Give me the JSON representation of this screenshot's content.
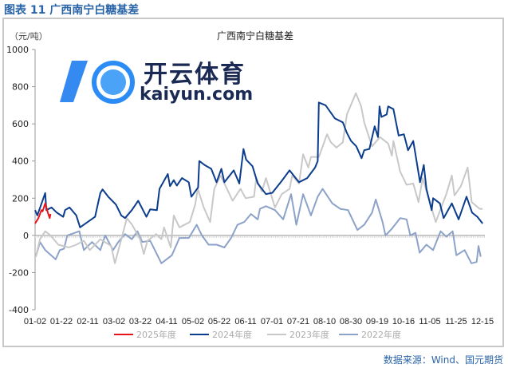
{
  "figure_title": "图表 11  广西南宁白糖基差",
  "source": "数据来源：Wind、国元期货",
  "watermark": {
    "cn": "开云体育",
    "en": "kaiyun.com"
  },
  "chart_data": {
    "type": "line",
    "title": "广西南宁白糖基差",
    "ylabel": "（元/吨）",
    "xlabel": "",
    "ylim": [
      -400,
      1000
    ],
    "yticks": [
      "-400",
      "-200",
      "0",
      "200",
      "400",
      "600",
      "800",
      "1000"
    ],
    "ytick_values": [
      -400,
      -200,
      0,
      200,
      400,
      600,
      800,
      1000
    ],
    "xlim": [
      0,
      120
    ],
    "categories": [
      "01-02",
      "01-22",
      "02-11",
      "03-02",
      "03-22",
      "04-11",
      "05-02",
      "05-22",
      "06-11",
      "07-01",
      "07-21",
      "08-10",
      "08-30",
      "09-19",
      "10-16",
      "11-05",
      "11-25",
      "12-15"
    ],
    "grid": false,
    "legend": "bottom",
    "series": [
      {
        "name": "2025年度",
        "color": "#e8131b",
        "width": 2,
        "points": [
          [
            0,
            64
          ],
          [
            0.9,
            93
          ],
          [
            1.7,
            136
          ],
          [
            2,
            129
          ],
          [
            2.7,
            172
          ],
          [
            3.4,
            122
          ],
          [
            3.9,
            93
          ],
          [
            4.1,
            115
          ]
        ]
      },
      {
        "name": "2024年度",
        "color": "#0b3d8c",
        "width": 2,
        "points": [
          [
            0,
            136
          ],
          [
            0.6,
            107
          ],
          [
            2.7,
            228
          ],
          [
            3,
            136
          ],
          [
            4.4,
            150
          ],
          [
            5.8,
            122
          ],
          [
            7.5,
            100
          ],
          [
            8,
            136
          ],
          [
            9.2,
            150
          ],
          [
            11,
            107
          ],
          [
            12,
            43
          ],
          [
            16,
            100
          ],
          [
            17.4,
            228
          ],
          [
            18,
            247
          ],
          [
            19.5,
            208
          ],
          [
            21.6,
            165
          ],
          [
            23,
            107
          ],
          [
            24,
            93
          ],
          [
            25.8,
            136
          ],
          [
            27.5,
            186
          ],
          [
            29.7,
            100
          ],
          [
            30.7,
            140
          ],
          [
            32.5,
            136
          ],
          [
            33.2,
            250
          ],
          [
            35.4,
            330
          ],
          [
            36,
            265
          ],
          [
            37,
            297
          ],
          [
            37.8,
            268
          ],
          [
            39.2,
            308
          ],
          [
            41,
            286
          ],
          [
            41.7,
            208
          ],
          [
            43.5,
            258
          ],
          [
            43.8,
            400
          ],
          [
            45.2,
            379
          ],
          [
            47,
            358
          ],
          [
            48.4,
            286
          ],
          [
            49.7,
            358
          ],
          [
            50.5,
            286
          ],
          [
            53,
            350
          ],
          [
            54.5,
            279
          ],
          [
            55.6,
            465
          ],
          [
            56.3,
            408
          ],
          [
            58,
            372
          ],
          [
            59.4,
            279
          ],
          [
            61.6,
            222
          ],
          [
            63.3,
            229
          ],
          [
            65.8,
            293
          ],
          [
            67.9,
            350
          ],
          [
            70.4,
            286
          ],
          [
            72.6,
            308
          ],
          [
            74.7,
            365
          ],
          [
            75.4,
            400
          ],
          [
            75.7,
            715
          ],
          [
            77.5,
            700
          ],
          [
            80,
            629
          ],
          [
            82.1,
            608
          ],
          [
            83.2,
            551
          ],
          [
            84.3,
            508
          ],
          [
            85.7,
            479
          ],
          [
            87.1,
            415
          ],
          [
            87.8,
            458
          ],
          [
            89.2,
            465
          ],
          [
            90.6,
            587
          ],
          [
            91.5,
            529
          ],
          [
            91.9,
            694
          ],
          [
            92.4,
            637
          ],
          [
            93.8,
            651
          ],
          [
            94.2,
            694
          ],
          [
            95.6,
            679
          ],
          [
            97,
            537
          ],
          [
            98.4,
            544
          ],
          [
            99.5,
            458
          ],
          [
            100.9,
            508
          ],
          [
            102.7,
            286
          ],
          [
            103.7,
            379
          ],
          [
            104.4,
            250
          ],
          [
            105.8,
            136
          ],
          [
            106.2,
            200
          ],
          [
            108,
            172
          ],
          [
            109,
            93
          ],
          [
            111.2,
            172
          ],
          [
            113,
            86
          ],
          [
            115.1,
            208
          ],
          [
            116.6,
            122
          ],
          [
            118,
            100
          ],
          [
            119.4,
            64
          ]
        ]
      },
      {
        "name": "2023年度",
        "color": "#c8c8c8",
        "width": 2,
        "points": [
          [
            0.2,
            -115
          ],
          [
            1.3,
            -21
          ],
          [
            2.7,
            22
          ],
          [
            4.1,
            0
          ],
          [
            6.2,
            -50
          ],
          [
            9,
            -65
          ],
          [
            11,
            -50
          ],
          [
            13,
            -29
          ],
          [
            14.6,
            -79
          ],
          [
            17.4,
            -21
          ],
          [
            20.3,
            -57
          ],
          [
            21.3,
            -150
          ],
          [
            23,
            -21
          ],
          [
            24.5,
            93
          ],
          [
            25.9,
            57
          ],
          [
            28,
            -21
          ],
          [
            29,
            -100
          ],
          [
            30,
            -29
          ],
          [
            32.3,
            7
          ],
          [
            33.7,
            -21
          ],
          [
            34.4,
            43
          ],
          [
            36.2,
            -65
          ],
          [
            37,
            107
          ],
          [
            38.5,
            43
          ],
          [
            41.3,
            72
          ],
          [
            42.7,
            165
          ],
          [
            43.4,
            250
          ],
          [
            45,
            150
          ],
          [
            46.7,
            72
          ],
          [
            47.8,
            250
          ],
          [
            49.5,
            322
          ],
          [
            51.2,
            250
          ],
          [
            52.7,
            186
          ],
          [
            54.8,
            250
          ],
          [
            56.2,
            200
          ],
          [
            58.4,
            208
          ],
          [
            59,
            308
          ],
          [
            60.5,
            236
          ],
          [
            61.6,
            308
          ],
          [
            64,
            150
          ],
          [
            65.8,
            222
          ],
          [
            67.9,
            250
          ],
          [
            68.6,
            322
          ],
          [
            70.4,
            279
          ],
          [
            71.5,
            436
          ],
          [
            72.9,
            365
          ],
          [
            73.6,
            422
          ],
          [
            75.7,
            422
          ],
          [
            77.9,
            544
          ],
          [
            78.9,
            501
          ],
          [
            80.4,
            472
          ],
          [
            82.1,
            501
          ],
          [
            83.2,
            651
          ],
          [
            85.6,
            765
          ],
          [
            87,
            694
          ],
          [
            87.8,
            608
          ],
          [
            89.9,
            479
          ],
          [
            92,
            529
          ],
          [
            94.2,
            494
          ],
          [
            95.2,
            429
          ],
          [
            95.6,
            508
          ],
          [
            97.4,
            343
          ],
          [
            99.1,
            272
          ],
          [
            100.9,
            279
          ],
          [
            102.3,
            179
          ],
          [
            103.4,
            308
          ],
          [
            105.5,
            165
          ],
          [
            106.9,
            72
          ],
          [
            109.7,
            222
          ],
          [
            111.2,
            322
          ],
          [
            111.9,
            215
          ],
          [
            113.6,
            265
          ],
          [
            115.4,
            365
          ],
          [
            116.5,
            179
          ],
          [
            118.6,
            143
          ],
          [
            119.4,
            143
          ]
        ]
      },
      {
        "name": "2022年度",
        "color": "#8da2c8",
        "width": 2,
        "points": [
          [
            0.2,
            -115
          ],
          [
            1.3,
            -36
          ],
          [
            2.7,
            -79
          ],
          [
            5.5,
            -129
          ],
          [
            6.6,
            -79
          ],
          [
            7.7,
            -72
          ],
          [
            8.6,
            0
          ],
          [
            11.8,
            22
          ],
          [
            13,
            -79
          ],
          [
            15.2,
            -36
          ],
          [
            17.4,
            -79
          ],
          [
            18.7,
            0
          ],
          [
            20.8,
            -79
          ],
          [
            22.2,
            -36
          ],
          [
            24,
            7
          ],
          [
            25.8,
            -21
          ],
          [
            27.3,
            22
          ],
          [
            28.6,
            -36
          ],
          [
            30.7,
            -29
          ],
          [
            33.7,
            -150
          ],
          [
            36.5,
            -107
          ],
          [
            38.5,
            -14
          ],
          [
            41,
            -14
          ],
          [
            43.1,
            57
          ],
          [
            44.5,
            0
          ],
          [
            46.3,
            -50
          ],
          [
            48.4,
            -50
          ],
          [
            50.5,
            -65
          ],
          [
            52.3,
            -14
          ],
          [
            54,
            57
          ],
          [
            55.8,
            72
          ],
          [
            57.6,
            115
          ],
          [
            59.4,
            86
          ],
          [
            60,
            143
          ],
          [
            61.6,
            157
          ],
          [
            64,
            136
          ],
          [
            66.2,
            86
          ],
          [
            68.3,
            222
          ],
          [
            69.7,
            57
          ],
          [
            71.5,
            222
          ],
          [
            73.6,
            107
          ],
          [
            75.4,
            208
          ],
          [
            76.7,
            250
          ],
          [
            79.3,
            172
          ],
          [
            81.4,
            143
          ],
          [
            83.5,
            136
          ],
          [
            86,
            29
          ],
          [
            87.8,
            57
          ],
          [
            89.9,
            122
          ],
          [
            90.9,
            193
          ],
          [
            92.7,
            72
          ],
          [
            93.5,
            0
          ],
          [
            95.2,
            36
          ],
          [
            97.4,
            93
          ],
          [
            99.1,
            86
          ],
          [
            100.1,
            0
          ],
          [
            101.5,
            14
          ],
          [
            102.6,
            -93
          ],
          [
            104.4,
            -50
          ],
          [
            106.2,
            -79
          ],
          [
            108.2,
            22
          ],
          [
            109.7,
            -7
          ],
          [
            111.4,
            22
          ],
          [
            112.4,
            -107
          ],
          [
            114.6,
            -79
          ],
          [
            116.4,
            -150
          ],
          [
            117.8,
            -143
          ],
          [
            118.3,
            -57
          ],
          [
            118.9,
            -115
          ]
        ]
      }
    ]
  }
}
